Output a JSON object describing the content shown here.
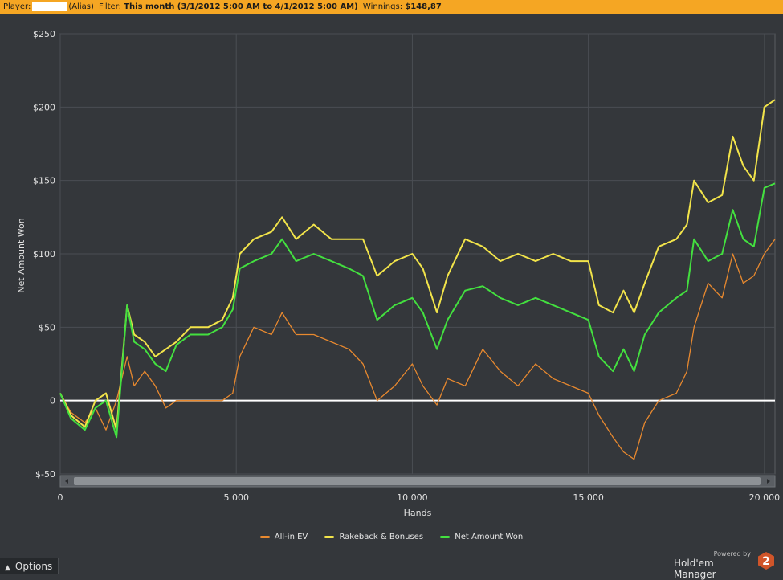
{
  "header": {
    "player_label": "Player:",
    "alias_label": "(Alias)",
    "filter_label": "Filter:",
    "filter_value": "This month (3/1/2012 5:00 AM to 4/1/2012 5:00 AM)",
    "winnings_label": "Winnings:",
    "winnings_value": "$148,87"
  },
  "colors": {
    "allin": "#e8892f",
    "rakeback": "#f2e44a",
    "net": "#43e03f",
    "zero_line": "#ffffff",
    "header_bg": "#f5a623",
    "background": "#34373b"
  },
  "legend": {
    "allin": "All-in EV",
    "rakeback": "Rakeback & Bonuses",
    "net": "Net Amount Won"
  },
  "chart_data": {
    "type": "line",
    "title": "",
    "xlabel": "Hands",
    "ylabel": "Net Amount Won",
    "xlim": [
      0,
      20300
    ],
    "ylim": [
      -50,
      250
    ],
    "x_ticks": [
      0,
      5000,
      10000,
      15000,
      20000
    ],
    "x_tick_labels": [
      "0",
      "5 000",
      "10 000",
      "15 000",
      "20 000"
    ],
    "y_ticks": [
      -50,
      0,
      50,
      100,
      150,
      200,
      250
    ],
    "y_tick_labels": [
      "$-50",
      "0",
      "$50",
      "$100",
      "$150",
      "$200",
      "$250"
    ],
    "grid": true,
    "legend_position": "bottom",
    "x": [
      0,
      300,
      700,
      1000,
      1300,
      1600,
      1900,
      2100,
      2400,
      2700,
      3000,
      3300,
      3700,
      4200,
      4600,
      4900,
      5100,
      5500,
      6000,
      6300,
      6700,
      7200,
      7700,
      8200,
      8600,
      9000,
      9500,
      10000,
      10300,
      10700,
      11000,
      11500,
      12000,
      12500,
      13000,
      13500,
      14000,
      14500,
      15000,
      15300,
      15700,
      16000,
      16300,
      16600,
      17000,
      17500,
      17800,
      18000,
      18400,
      18800,
      19100,
      19400,
      19700,
      20000,
      20300
    ],
    "series": [
      {
        "name": "All-in EV",
        "values": [
          5,
          -8,
          -15,
          -5,
          -20,
          0,
          30,
          10,
          20,
          10,
          -5,
          0,
          0,
          0,
          0,
          5,
          30,
          50,
          45,
          60,
          45,
          45,
          40,
          35,
          25,
          0,
          10,
          25,
          10,
          -3,
          15,
          10,
          35,
          20,
          10,
          25,
          15,
          10,
          5,
          -10,
          -25,
          -35,
          -40,
          -15,
          0,
          5,
          20,
          50,
          80,
          70,
          100,
          80,
          85,
          100,
          110
        ]
      },
      {
        "name": "Rakeback & Bonuses",
        "values": [
          5,
          -10,
          -18,
          0,
          5,
          -20,
          65,
          45,
          40,
          30,
          35,
          40,
          50,
          50,
          55,
          70,
          100,
          110,
          115,
          125,
          110,
          120,
          110,
          110,
          110,
          85,
          95,
          100,
          90,
          60,
          85,
          110,
          105,
          95,
          100,
          95,
          100,
          95,
          95,
          65,
          60,
          75,
          60,
          80,
          105,
          110,
          120,
          150,
          135,
          140,
          180,
          160,
          150,
          200,
          205
        ]
      },
      {
        "name": "Net Amount Won",
        "values": [
          5,
          -12,
          -20,
          -5,
          0,
          -25,
          65,
          40,
          35,
          25,
          20,
          38,
          45,
          45,
          50,
          62,
          90,
          95,
          100,
          110,
          95,
          100,
          95,
          90,
          85,
          55,
          65,
          70,
          60,
          35,
          55,
          75,
          78,
          70,
          65,
          70,
          65,
          60,
          55,
          30,
          20,
          35,
          20,
          45,
          60,
          70,
          75,
          110,
          95,
          100,
          130,
          110,
          105,
          145,
          148
        ]
      }
    ]
  }
}
